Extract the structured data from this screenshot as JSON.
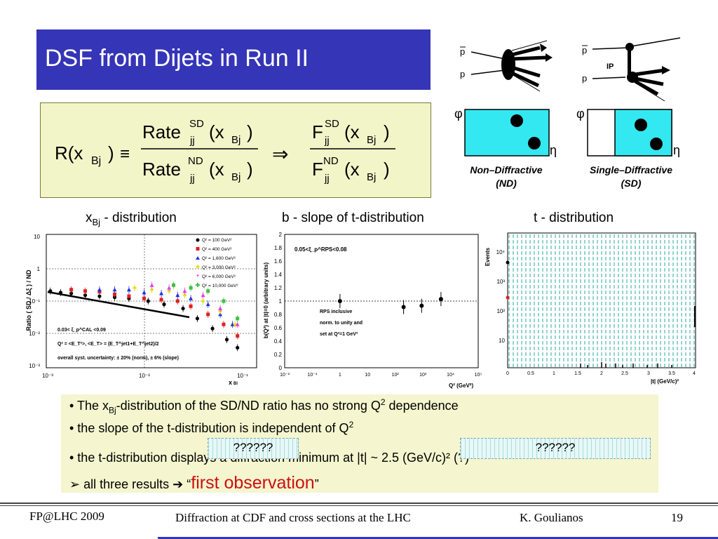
{
  "title": "DSF from Dijets in Run II",
  "formula": {
    "lhs": "R(x",
    "lhs_sub": "Bj",
    "lhs_close": ")",
    "equiv": "≡",
    "rate": "Rate",
    "sd": "SD",
    "nd": "ND",
    "jj": "jj",
    "x_open": "(x",
    "bj": "Bj",
    "close": ")",
    "implies": "⇒",
    "f": "F"
  },
  "diagrams": {
    "pbar": "p",
    "p": "p",
    "ip": "IP",
    "phi": "φ",
    "eta": "η",
    "nd_label": "Non–Diffractive",
    "nd_abbr": "(ND)",
    "sd_label": "Single–Diffractive",
    "sd_abbr": "(SD)"
  },
  "captions": {
    "xbj_prefix": "x",
    "xbj_sub": "Bj",
    "xbj_suffix": " - distribution",
    "bslope": "b - slope of t-distribution",
    "tdist": "t - distribution"
  },
  "plot1": {
    "ylabel": "Ratio ( SD / Δξ ) / ND",
    "xlabel": "x",
    "xlabel_sub": "Bj",
    "yticks": [
      "10",
      "1",
      "10⁻¹",
      "10⁻²",
      "10⁻³"
    ],
    "xticks": [
      "10⁻³",
      "10⁻²",
      "10⁻¹"
    ],
    "legend": [
      "Q² = 100 GeV²",
      "Q² = 400 GeV²",
      "Q² = 1,600 GeV²",
      "Q² = 3,000 GeV²",
      "Q² = 6,000 GeV²",
      "Q² = 10,000 GeV²"
    ],
    "legend_colors": [
      "#000000",
      "#e02020",
      "#2030e0",
      "#e8e020",
      "#e040e0",
      "#40c040"
    ],
    "note1": "0.03< ξ_p^CAL <0.09",
    "note2": "Q² = <E_T²>,  <E_T> = (E_T^jet1+E_T^jet2)/2",
    "note3": "overall syst. uncertainty: ± 20% (norm), ± 6% (slope)"
  },
  "plot2": {
    "ylabel": "b(Q²) at |t|=0 (arbitrary units)",
    "xlabel": "Q² (GeV²)",
    "yticks": [
      "2",
      "1.8",
      "1.6",
      "1.4",
      "1.2",
      "1",
      "0.8",
      "0.6",
      "0.4",
      "0.2",
      "0"
    ],
    "xticks": [
      "10⁻²",
      "10⁻¹",
      "1",
      "10",
      "10²",
      "10³",
      "10⁴",
      "10⁵"
    ],
    "range_label": "0.05<ξ_p^RPS<0.08",
    "note1": "RPS inclusive",
    "note2": "norm. to unity and",
    "note3": "set at Q²=1 GeV²"
  },
  "plot3": {
    "ylabel": "Events",
    "xlabel": "|t| (GeV/c)²",
    "yticks": [
      "10⁴",
      "10³",
      "10²",
      "10"
    ],
    "xticks": [
      "0",
      "0.5",
      "1",
      "1.5",
      "2",
      "2.5",
      "3",
      "3.5",
      "4"
    ]
  },
  "chart_data": [
    {
      "type": "scatter",
      "ylim": [
        0.001,
        10
      ],
      "series_colors": [
        "#000000",
        "#e02020",
        "#2030e0",
        "#e8e020",
        "#e040e0",
        "#40c040"
      ],
      "series": [
        {
          "name": "Q² = 100 GeV²",
          "points": [
            [
              0.0011,
              0.2
            ],
            [
              0.0014,
              0.18
            ],
            [
              0.0018,
              0.17
            ],
            [
              0.0025,
              0.15
            ],
            [
              0.0035,
              0.14
            ],
            [
              0.005,
              0.13
            ],
            [
              0.007,
              0.12
            ],
            [
              0.011,
              0.1
            ],
            [
              0.016,
              0.08
            ],
            [
              0.025,
              0.06
            ],
            [
              0.035,
              0.03
            ],
            [
              0.05,
              0.015
            ],
            [
              0.07,
              0.007
            ],
            [
              0.09,
              0.004
            ]
          ]
        },
        {
          "name": "Q² = 400 GeV²",
          "points": [
            [
              0.0018,
              0.22
            ],
            [
              0.0025,
              0.2
            ],
            [
              0.0035,
              0.19
            ],
            [
              0.005,
              0.16
            ],
            [
              0.007,
              0.14
            ],
            [
              0.01,
              0.12
            ],
            [
              0.015,
              0.11
            ],
            [
              0.022,
              0.1
            ],
            [
              0.03,
              0.07
            ],
            [
              0.045,
              0.04
            ],
            [
              0.065,
              0.02
            ],
            [
              0.09,
              0.009
            ]
          ]
        },
        {
          "name": "Q² = 1,600 GeV²",
          "points": [
            [
              0.0035,
              0.22
            ],
            [
              0.005,
              0.22
            ],
            [
              0.007,
              0.22
            ],
            [
              0.01,
              0.18
            ],
            [
              0.015,
              0.17
            ],
            [
              0.022,
              0.15
            ],
            [
              0.03,
              0.12
            ],
            [
              0.045,
              0.08
            ],
            [
              0.06,
              0.04
            ],
            [
              0.08,
              0.02
            ]
          ]
        },
        {
          "name": "Q² = 3,000 GeV²",
          "points": [
            [
              0.008,
              0.25
            ],
            [
              0.012,
              0.22
            ],
            [
              0.018,
              0.2
            ],
            [
              0.026,
              0.15
            ],
            [
              0.04,
              0.1
            ],
            [
              0.06,
              0.05
            ],
            [
              0.085,
              0.02
            ]
          ]
        },
        {
          "name": "Q² = 6,000 GeV²",
          "points": [
            [
              0.012,
              0.3
            ],
            [
              0.018,
              0.25
            ],
            [
              0.026,
              0.2
            ],
            [
              0.04,
              0.15
            ],
            [
              0.06,
              0.06
            ],
            [
              0.09,
              0.02
            ]
          ]
        },
        {
          "name": "Q² = 10,000 GeV²",
          "points": [
            [
              0.02,
              0.3
            ],
            [
              0.03,
              0.25
            ],
            [
              0.045,
              0.2
            ],
            [
              0.065,
              0.1
            ],
            [
              0.09,
              0.03
            ]
          ]
        }
      ]
    },
    {
      "type": "scatter",
      "ylim": [
        0,
        2
      ],
      "xlim": [
        0.01,
        100000
      ],
      "series": [
        {
          "points": [
            [
              1,
              1.0
            ],
            [
              200,
              0.91
            ],
            [
              900,
              0.93
            ],
            [
              4500,
              1.03
            ]
          ]
        }
      ]
    }
  ],
  "bullets": {
    "b1_prefix": "• The x",
    "b1_sub": "Bj",
    "b1_mid": "-distribution of the SD/ND ratio has no strong Q",
    "b1_sup": "2",
    "b1_suffix": " dependence",
    "b2_prefix": "•  the slope of the t-distribution is independent of Q",
    "b2_sup": "2",
    "b3": "•  the t-distribution displays a diffraction minimum at |t| ~ 2.5 (GeV/c)² (?)",
    "q1": "??????",
    "q2": "??????",
    "b4_arrow": "➢",
    "b4_text": "  all three results ",
    "b4_arrow2": "➔",
    "b4_quote_open": "  “",
    "b4_red": "first observation",
    "b4_quote_close": "”"
  },
  "footer": {
    "left": "FP@LHC 2009",
    "center": "Diffraction at CDF and cross sections at the LHC",
    "author": "K. Goulianos",
    "page": "19"
  }
}
